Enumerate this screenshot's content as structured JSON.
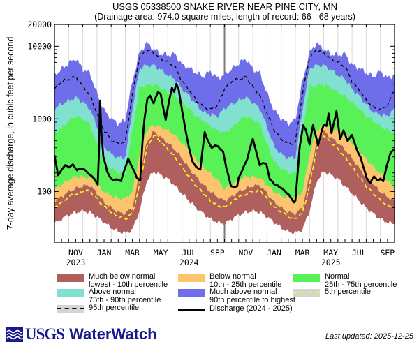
{
  "title": {
    "line1": "USGS 05338500 SNAKE RIVER NEAR PINE CITY, MN",
    "line2": "(Drainage area: 974.0 square miles, length of record: 66 - 68 years)"
  },
  "y_axis_label": "7-day average discharge, in cubic feet per second",
  "colors": {
    "much_below": "#b05f5f",
    "below": "#fcc46c",
    "normal": "#58f158",
    "above": "#82e0d0",
    "much_above": "#6e6eea",
    "p5_line": "#ffff00",
    "p95_line": "#000000",
    "discharge": "#000000",
    "legend_gray": "#d4d4d4",
    "grid": "#d9d9d9",
    "year_divider": "#7a7a7a",
    "frame": "#000000",
    "logo_navy": "#1a1a8e"
  },
  "legend": {
    "items": [
      {
        "swatch": "band",
        "color_key": "much_below",
        "line1": "Much below normal",
        "line2": "lowest - 10th percentile",
        "col": 0,
        "row": 0
      },
      {
        "swatch": "band",
        "color_key": "above",
        "line1": "Above normal",
        "line2": "75th - 90th percentile",
        "col": 0,
        "row": 1
      },
      {
        "swatch": "dash_gray",
        "color_key": "p95_line",
        "line1": "95th percentile",
        "line2": "",
        "col": 0,
        "row": 2
      },
      {
        "swatch": "band",
        "color_key": "below",
        "line1": "Below normal",
        "line2": "10th - 25th percentile",
        "col": 1,
        "row": 0
      },
      {
        "swatch": "band",
        "color_key": "much_above",
        "line1": "Much above normal",
        "line2": "90th percentile to highest",
        "col": 1,
        "row": 1
      },
      {
        "swatch": "solid_line",
        "color_key": "discharge",
        "line1": "Discharge (2024 - 2025)",
        "line2": "",
        "col": 1,
        "row": 2
      },
      {
        "swatch": "band",
        "color_key": "normal",
        "line1": "Normal",
        "line2": "25th - 75th percentile",
        "col": 2,
        "row": 0
      },
      {
        "swatch": "dash_gray",
        "color_key": "p5_line",
        "line1": "5th percentile",
        "line2": "",
        "col": 2,
        "row": 1
      }
    ]
  },
  "footer": {
    "usgs": "USGS",
    "waterwatch": "WaterWatch",
    "last_updated": "Last updated: 2025-12-25"
  },
  "chart_data": {
    "type": "area",
    "title": "USGS 05338500 SNAKE RIVER NEAR PINE CITY, MN",
    "subtitle": "(Drainage area: 974.0 square miles, length of record: 66 - 68 years)",
    "ylabel": "7-day average discharge, in cubic feet per second",
    "y_scale": "log",
    "ylim": [
      20,
      20000
    ],
    "y_major_ticks": [
      100,
      1000,
      10000,
      20000
    ],
    "y_major_tick_labels": [
      "100",
      "1000",
      "10000",
      "20000"
    ],
    "x_start": "2023-10-01",
    "x_end": "2025-09-30",
    "x_unit": "months since 2023-10-01",
    "month_tick_labels": [
      "NOV",
      "JAN",
      "MAR",
      "MAY",
      "JUL",
      "SEP",
      "NOV",
      "JAN",
      "MAR",
      "MAY",
      "JUL",
      "SEP"
    ],
    "month_tick_m": [
      1.5,
      3.5,
      5.5,
      7.5,
      9.5,
      11.5,
      13.5,
      15.5,
      17.5,
      19.5,
      21.5,
      23.5
    ],
    "year_labels": [
      "2023",
      "2024",
      "2025"
    ],
    "year_label_m": [
      1.5,
      9.5,
      19.5
    ],
    "water_year_divider_m": 12,
    "percentile_climatology": {
      "note": "day-of-year percentile bands in cfs, half-month resolution Oct 1 through Oct 1, repeated for both years",
      "m": [
        0,
        0.5,
        1,
        1.5,
        2,
        2.5,
        3,
        3.5,
        4,
        4.5,
        5,
        5.5,
        6,
        6.5,
        7,
        7.5,
        8,
        8.5,
        9,
        9.5,
        10,
        10.5,
        11,
        11.5,
        12
      ],
      "low": [
        36,
        42,
        48,
        52,
        54,
        52,
        45,
        38,
        32,
        28,
        27,
        30,
        55,
        140,
        190,
        170,
        150,
        120,
        95,
        75,
        60,
        50,
        42,
        38,
        36
      ],
      "p5": [
        60,
        70,
        85,
        92,
        100,
        103,
        80,
        62,
        52,
        45,
        42,
        50,
        120,
        390,
        600,
        480,
        380,
        300,
        220,
        160,
        120,
        95,
        75,
        64,
        60
      ],
      "p10": [
        75,
        85,
        100,
        110,
        120,
        122,
        95,
        72,
        60,
        52,
        50,
        60,
        170,
        480,
        680,
        560,
        470,
        380,
        290,
        210,
        160,
        125,
        100,
        85,
        75
      ],
      "p25": [
        110,
        125,
        145,
        160,
        160,
        155,
        125,
        100,
        88,
        82,
        80,
        100,
        330,
        700,
        820,
        780,
        700,
        600,
        470,
        370,
        280,
        220,
        180,
        145,
        110
      ],
      "p75": [
        650,
        750,
        950,
        1100,
        1000,
        850,
        450,
        260,
        210,
        185,
        180,
        700,
        2800,
        2900,
        3000,
        2700,
        2300,
        2100,
        1700,
        1400,
        1100,
        950,
        800,
        700,
        650
      ],
      "p90": [
        1400,
        1600,
        1800,
        2000,
        1700,
        1400,
        800,
        420,
        330,
        290,
        300,
        1400,
        5000,
        5500,
        5500,
        4800,
        4000,
        3600,
        2600,
        2100,
        1600,
        1250,
        1150,
        1100,
        1400
      ],
      "p95": [
        2600,
        3300,
        3500,
        3800,
        2800,
        2100,
        1200,
        700,
        520,
        450,
        480,
        2200,
        7000,
        9000,
        8000,
        6800,
        6000,
        5200,
        3300,
        2500,
        1800,
        1450,
        1350,
        1500,
        2600
      ],
      "high": [
        4000,
        4800,
        5800,
        6700,
        4800,
        4200,
        2200,
        1300,
        1000,
        850,
        950,
        3200,
        8000,
        11000,
        9000,
        7800,
        7500,
        7800,
        5500,
        5000,
        4300,
        3800,
        4500,
        3600,
        4000
      ]
    },
    "discharge": {
      "label": "Discharge (2024 - 2025)",
      "x": [
        0.0,
        0.25,
        0.5,
        0.75,
        1.0,
        1.3,
        1.6,
        2.0,
        2.4,
        2.8,
        3.05,
        3.13,
        3.22,
        3.3,
        3.45,
        3.7,
        4.0,
        4.3,
        4.7,
        5.0,
        5.2,
        5.5,
        5.8,
        6.05,
        6.2,
        6.35,
        6.55,
        6.75,
        7.0,
        7.3,
        7.5,
        7.85,
        8.1,
        8.3,
        8.45,
        8.6,
        8.75,
        8.9,
        9.0,
        9.25,
        9.5,
        9.7,
        10.0,
        10.3,
        10.6,
        10.75,
        10.9,
        11.1,
        11.35,
        11.6,
        11.9,
        12.15,
        12.45,
        12.7,
        12.9,
        13.0,
        13.3,
        13.6,
        14.0,
        14.2,
        14.5,
        14.75,
        14.95,
        15.2,
        15.5,
        15.8,
        16.0,
        16.5,
        16.9,
        17.0,
        17.3,
        17.55,
        17.75,
        18.0,
        18.25,
        18.6,
        18.8,
        19.0,
        19.2,
        19.35,
        19.55,
        19.9,
        20.15,
        20.4,
        20.7,
        21.0,
        21.3,
        21.6,
        21.85,
        22.05,
        22.3,
        22.55,
        22.75,
        23.0,
        23.2,
        23.45,
        23.7,
        23.95
      ],
      "values": [
        310,
        165,
        200,
        235,
        210,
        235,
        200,
        205,
        180,
        150,
        122,
        300,
        1800,
        700,
        300,
        190,
        150,
        145,
        139,
        220,
        280,
        210,
        160,
        140,
        435,
        980,
        1900,
        2100,
        1620,
        2350,
        2200,
        950,
        1810,
        2700,
        2400,
        3000,
        2600,
        1700,
        1360,
        700,
        390,
        270,
        220,
        200,
        660,
        550,
        480,
        390,
        430,
        415,
        350,
        200,
        122,
        115,
        118,
        152,
        210,
        280,
        530,
        380,
        230,
        245,
        240,
        150,
        125,
        118,
        114,
        90,
        72,
        75,
        390,
        820,
        700,
        450,
        810,
        440,
        620,
        820,
        790,
        1200,
        640,
        1250,
        530,
        700,
        490,
        600,
        400,
        290,
        200,
        152,
        132,
        160,
        143,
        152,
        138,
        220,
        340,
        380
      ]
    }
  }
}
